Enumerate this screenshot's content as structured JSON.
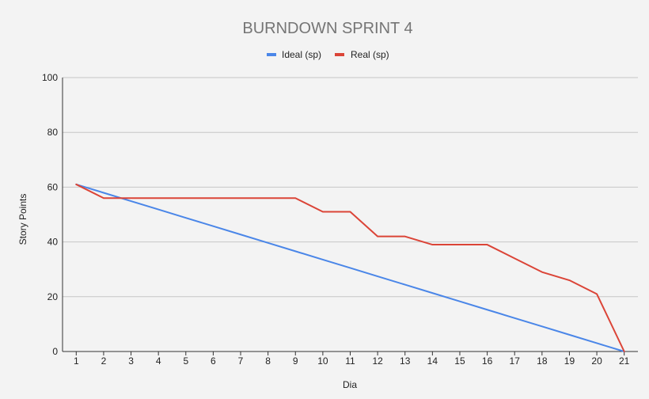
{
  "chart_data": {
    "type": "line",
    "title": "BURNDOWN SPRINT 4",
    "xlabel": "Dia",
    "ylabel": "Story Points",
    "categories": [
      "1",
      "2",
      "3",
      "4",
      "5",
      "6",
      "7",
      "8",
      "9",
      "10",
      "11",
      "12",
      "13",
      "14",
      "15",
      "16",
      "17",
      "18",
      "19",
      "20",
      "21"
    ],
    "ylim": [
      0,
      100
    ],
    "yticks": [
      0,
      20,
      40,
      60,
      80,
      100
    ],
    "grid": true,
    "legend_position": "top-center",
    "series": [
      {
        "name": "Ideal (sp)",
        "color": "#4a86e8",
        "values": [
          61,
          57.95,
          54.9,
          51.85,
          48.8,
          45.75,
          42.7,
          39.65,
          36.6,
          33.55,
          30.5,
          27.45,
          24.4,
          21.35,
          18.3,
          15.25,
          12.2,
          9.15,
          6.1,
          3.05,
          0
        ]
      },
      {
        "name": "Real (sp)",
        "color": "#db4437",
        "values": [
          61,
          56,
          56,
          56,
          56,
          56,
          56,
          56,
          56,
          51,
          51,
          42,
          42,
          39,
          39,
          39,
          34,
          29,
          26,
          21,
          0
        ]
      }
    ]
  }
}
